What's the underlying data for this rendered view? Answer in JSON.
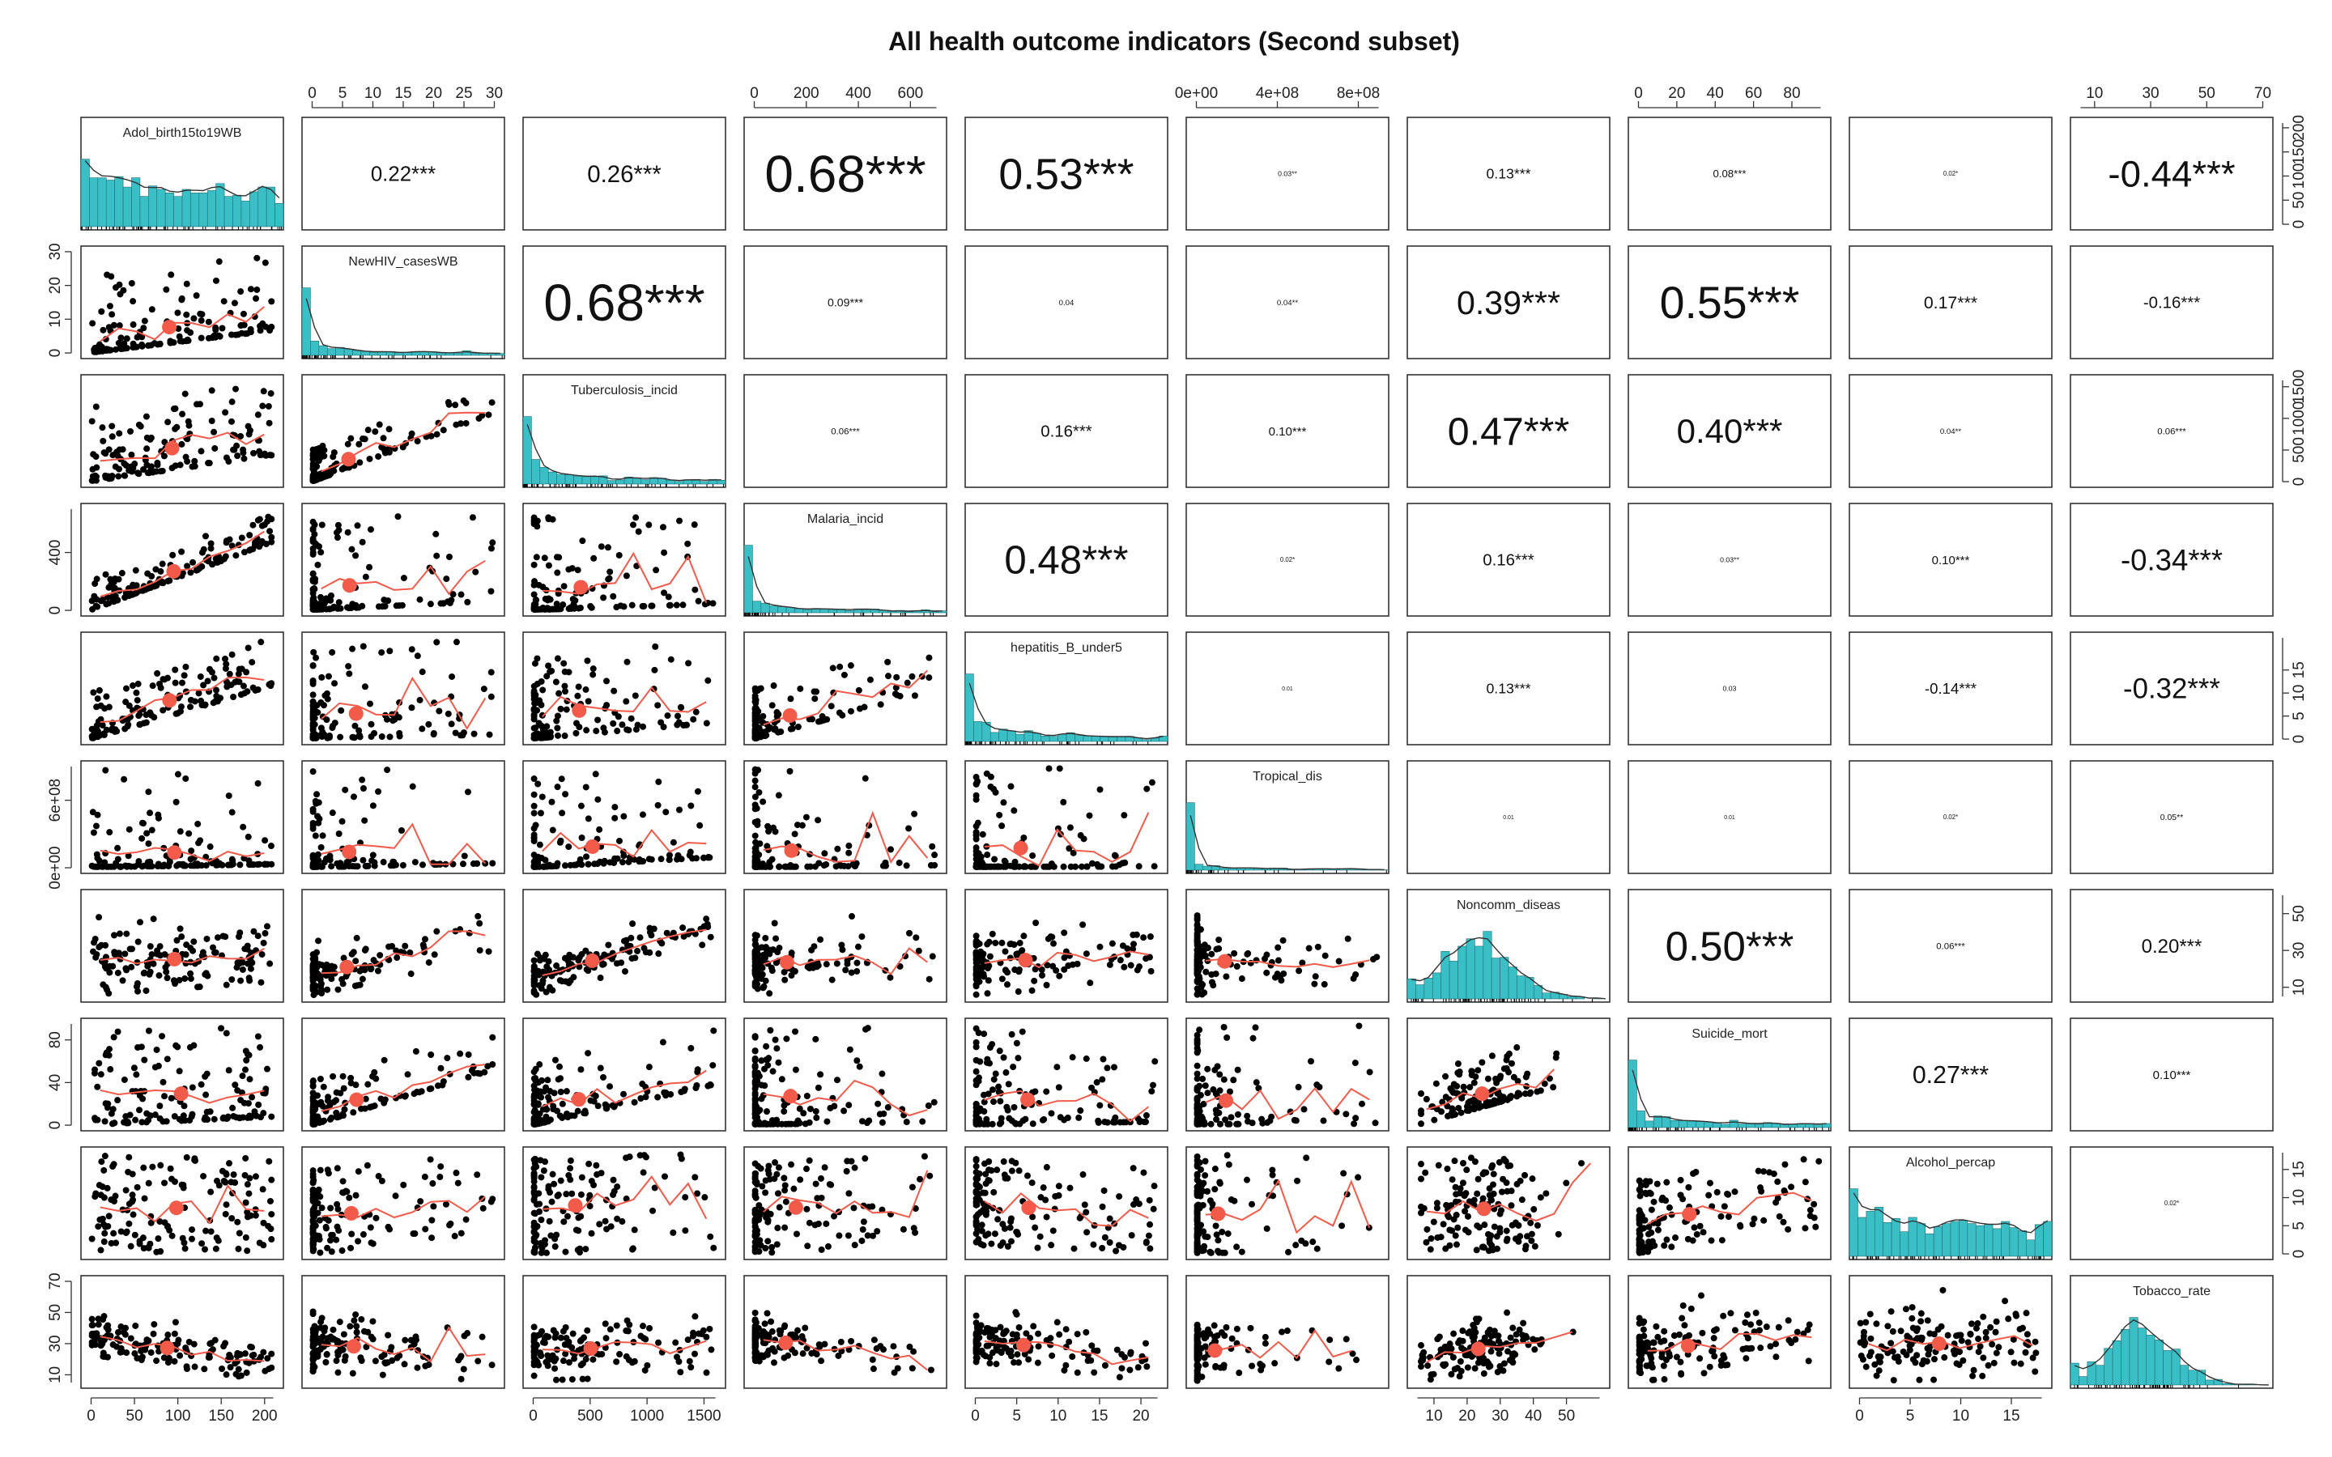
{
  "chart_data": {
    "type": "scatter",
    "subtype": "scatterplot-matrix",
    "title": "All health outcome indicators (Second subset)",
    "variables": [
      "Adol_birth15to19WB",
      "NewHIV_casesWB",
      "Tuberculosis_incid",
      "Malaria_incid",
      "hepatitis_B_under5",
      "Tropical_dis",
      "Noncomm_diseas",
      "Suicide_mort",
      "Alcohol_percap",
      "Tobacco_rate"
    ],
    "correlations": [
      {
        "row": 0,
        "col": 1,
        "value": "0.22***"
      },
      {
        "row": 0,
        "col": 2,
        "value": "0.26***"
      },
      {
        "row": 0,
        "col": 3,
        "value": "0.68***"
      },
      {
        "row": 0,
        "col": 4,
        "value": "0.53***"
      },
      {
        "row": 0,
        "col": 5,
        "value": "0.03**"
      },
      {
        "row": 0,
        "col": 6,
        "value": "0.13***"
      },
      {
        "row": 0,
        "col": 7,
        "value": "0.08***"
      },
      {
        "row": 0,
        "col": 8,
        "value": "0.02*"
      },
      {
        "row": 0,
        "col": 9,
        "value": "-0.44***"
      },
      {
        "row": 1,
        "col": 2,
        "value": "0.68***"
      },
      {
        "row": 1,
        "col": 3,
        "value": "0.09***"
      },
      {
        "row": 1,
        "col": 4,
        "value": "0.04"
      },
      {
        "row": 1,
        "col": 5,
        "value": "0.04**"
      },
      {
        "row": 1,
        "col": 6,
        "value": "0.39***"
      },
      {
        "row": 1,
        "col": 7,
        "value": "0.55***"
      },
      {
        "row": 1,
        "col": 8,
        "value": "0.17***"
      },
      {
        "row": 1,
        "col": 9,
        "value": "-0.16***"
      },
      {
        "row": 2,
        "col": 3,
        "value": "0.06***"
      },
      {
        "row": 2,
        "col": 4,
        "value": "0.16***"
      },
      {
        "row": 2,
        "col": 5,
        "value": "0.10***"
      },
      {
        "row": 2,
        "col": 6,
        "value": "0.47***"
      },
      {
        "row": 2,
        "col": 7,
        "value": "0.40***"
      },
      {
        "row": 2,
        "col": 8,
        "value": "0.04**"
      },
      {
        "row": 2,
        "col": 9,
        "value": "0.06***"
      },
      {
        "row": 3,
        "col": 4,
        "value": "0.48***"
      },
      {
        "row": 3,
        "col": 5,
        "value": "0.02*"
      },
      {
        "row": 3,
        "col": 6,
        "value": "0.16***"
      },
      {
        "row": 3,
        "col": 7,
        "value": "0.03**"
      },
      {
        "row": 3,
        "col": 8,
        "value": "0.10***"
      },
      {
        "row": 3,
        "col": 9,
        "value": "-0.34***"
      },
      {
        "row": 4,
        "col": 5,
        "value": "0.01"
      },
      {
        "row": 4,
        "col": 6,
        "value": "0.13***"
      },
      {
        "row": 4,
        "col": 7,
        "value": "0.03"
      },
      {
        "row": 4,
        "col": 8,
        "value": "-0.14***"
      },
      {
        "row": 4,
        "col": 9,
        "value": "-0.32***"
      },
      {
        "row": 5,
        "col": 6,
        "value": "0.01"
      },
      {
        "row": 5,
        "col": 7,
        "value": "0.01"
      },
      {
        "row": 5,
        "col": 8,
        "value": "0.02*"
      },
      {
        "row": 5,
        "col": 9,
        "value": "0.05**"
      },
      {
        "row": 6,
        "col": 7,
        "value": "0.50***"
      },
      {
        "row": 6,
        "col": 8,
        "value": "0.06***"
      },
      {
        "row": 6,
        "col": 9,
        "value": "0.20***"
      },
      {
        "row": 7,
        "col": 8,
        "value": "0.27***"
      },
      {
        "row": 7,
        "col": 9,
        "value": "0.10***"
      },
      {
        "row": 8,
        "col": 9,
        "value": "0.02*"
      }
    ],
    "axes": {
      "top": [
        {
          "col": 1,
          "range": [
            0,
            30
          ],
          "ticks": [
            "0",
            "5",
            "10",
            "15",
            "20",
            "25",
            "30"
          ]
        },
        {
          "col": 3,
          "range": [
            0,
            700
          ],
          "ticks": [
            "0",
            "200",
            "400",
            "600"
          ]
        },
        {
          "col": 5,
          "range": [
            0,
            900000000
          ],
          "ticks": [
            "0e+00",
            "4e+08",
            "8e+08"
          ]
        },
        {
          "col": 7,
          "range": [
            0,
            95
          ],
          "ticks": [
            "0",
            "20",
            "40",
            "60",
            "80"
          ]
        },
        {
          "col": 9,
          "range": [
            5,
            70
          ],
          "ticks": [
            "10",
            "30",
            "50",
            "70"
          ]
        }
      ],
      "bottom": [
        {
          "col": 0,
          "range": [
            0,
            210
          ],
          "ticks": [
            "0",
            "50",
            "100",
            "150",
            "200"
          ]
        },
        {
          "col": 2,
          "range": [
            0,
            1600
          ],
          "ticks": [
            "0",
            "500",
            "1000",
            "1500"
          ]
        },
        {
          "col": 4,
          "range": [
            0,
            22
          ],
          "ticks": [
            "0",
            "5",
            "10",
            "15",
            "20"
          ]
        },
        {
          "col": 6,
          "range": [
            5,
            60
          ],
          "ticks": [
            "10",
            "20",
            "30",
            "40",
            "50"
          ]
        },
        {
          "col": 8,
          "range": [
            0,
            18
          ],
          "ticks": [
            "0",
            "5",
            "10",
            "15"
          ]
        }
      ],
      "left": [
        {
          "row": 1,
          "range": [
            0,
            30
          ],
          "ticks": [
            "0",
            "10",
            "20",
            "30"
          ]
        },
        {
          "row": 3,
          "range": [
            0,
            700
          ],
          "ticks": [
            "0",
            "400"
          ]
        },
        {
          "row": 5,
          "range": [
            0,
            900000000
          ],
          "ticks": [
            "0e+00",
            "6e+08"
          ]
        },
        {
          "row": 7,
          "range": [
            0,
            95
          ],
          "ticks": [
            "0",
            "40",
            "80"
          ]
        },
        {
          "row": 9,
          "range": [
            5,
            70
          ],
          "ticks": [
            "10",
            "30",
            "50",
            "70"
          ]
        }
      ],
      "right": [
        {
          "row": 0,
          "range": [
            0,
            210
          ],
          "ticks": [
            "0",
            "50",
            "100",
            "150",
            "200"
          ]
        },
        {
          "row": 2,
          "range": [
            0,
            1600
          ],
          "ticks": [
            "0",
            "500",
            "1000",
            "1500"
          ]
        },
        {
          "row": 4,
          "range": [
            0,
            22
          ],
          "ticks": [
            "0",
            "5",
            "10",
            "15"
          ]
        },
        {
          "row": 6,
          "range": [
            5,
            60
          ],
          "ticks": [
            "10",
            "30",
            "50"
          ]
        },
        {
          "row": 8,
          "range": [
            0,
            18
          ],
          "ticks": [
            "0",
            "5",
            "10",
            "15"
          ]
        }
      ]
    },
    "colors": {
      "histogram": "#3bbfc6",
      "loess": "#f25a4a",
      "points": "#000000",
      "density": "#333333"
    }
  }
}
